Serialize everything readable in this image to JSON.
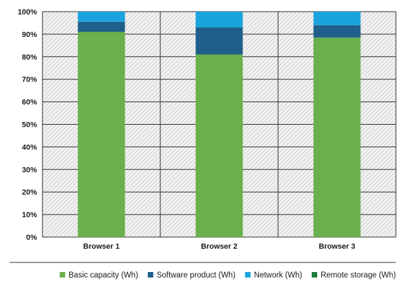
{
  "chart_data": {
    "type": "bar",
    "stacked": true,
    "categories": [
      "Browser 1",
      "Browser 2",
      "Browser 3"
    ],
    "series": [
      {
        "name": "Basic capacity (Wh)",
        "color": "#6ab04c",
        "values": [
          91,
          81,
          88.5
        ]
      },
      {
        "name": "Software product (Wh)",
        "color": "#1f5f8b",
        "values": [
          4.5,
          12,
          5.5
        ]
      },
      {
        "name": "Network (Wh)",
        "color": "#1aa3dc",
        "values": [
          4.5,
          7,
          6
        ]
      },
      {
        "name": "Remote storage (Wh)",
        "color": "#1e7a3c",
        "values": [
          0,
          0,
          0
        ]
      }
    ],
    "yticks": [
      "0%",
      "10%",
      "20%",
      "30%",
      "40%",
      "50%",
      "60%",
      "70%",
      "80%",
      "90%",
      "100%"
    ],
    "ylim": [
      0,
      100
    ],
    "grid": true,
    "legend_position": "bottom-right"
  }
}
